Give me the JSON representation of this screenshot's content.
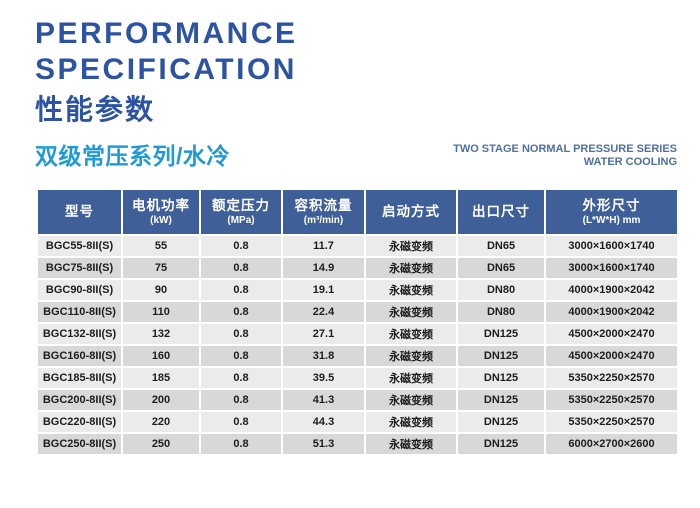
{
  "page": {
    "title_en_line1": "PERFORMANCE",
    "title_en_line2": "SPECIFICATION",
    "title_zh": "性能参数",
    "series_title_zh": "双级常压系列/水冷",
    "series_title_en_line1": "TWO STAGE NORMAL PRESSURE SERIES",
    "series_title_en_line2": "WATER COOLING"
  },
  "colors": {
    "title_blue": "#2d54a3",
    "series_blue": "#1f9ad6",
    "subtitle_gray_blue": "#4f6fa0",
    "header_bg": "#3e5f97",
    "row_light": "#ebebeb",
    "row_dark": "#d8d8d8"
  },
  "table": {
    "columns": [
      {
        "label": "型号",
        "sub": ""
      },
      {
        "label": "电机功率",
        "sub": "(kW)"
      },
      {
        "label": "额定压力",
        "sub": "(MPa)"
      },
      {
        "label": "容积流量",
        "sub": "(m³/min)"
      },
      {
        "label": "启动方式",
        "sub": ""
      },
      {
        "label": "出口尺寸",
        "sub": ""
      },
      {
        "label": "外形尺寸",
        "sub": "(L*W*H) mm"
      }
    ],
    "rows": [
      [
        "BGC55-8II(S)",
        "55",
        "0.8",
        "11.7",
        "永磁变频",
        "DN65",
        "3000×1600×1740"
      ],
      [
        "BGC75-8II(S)",
        "75",
        "0.8",
        "14.9",
        "永磁变频",
        "DN65",
        "3000×1600×1740"
      ],
      [
        "BGC90-8II(S)",
        "90",
        "0.8",
        "19.1",
        "永磁变频",
        "DN80",
        "4000×1900×2042"
      ],
      [
        "BGC110-8II(S)",
        "110",
        "0.8",
        "22.4",
        "永磁变频",
        "DN80",
        "4000×1900×2042"
      ],
      [
        "BGC132-8II(S)",
        "132",
        "0.8",
        "27.1",
        "永磁变频",
        "DN125",
        "4500×2000×2470"
      ],
      [
        "BGC160-8II(S)",
        "160",
        "0.8",
        "31.8",
        "永磁变频",
        "DN125",
        "4500×2000×2470"
      ],
      [
        "BGC185-8II(S)",
        "185",
        "0.8",
        "39.5",
        "永磁变频",
        "DN125",
        "5350×2250×2570"
      ],
      [
        "BGC200-8II(S)",
        "200",
        "0.8",
        "41.3",
        "永磁变频",
        "DN125",
        "5350×2250×2570"
      ],
      [
        "BGC220-8II(S)",
        "220",
        "0.8",
        "44.3",
        "永磁变频",
        "DN125",
        "5350×2250×2570"
      ],
      [
        "BGC250-8II(S)",
        "250",
        "0.8",
        "51.3",
        "永磁变频",
        "DN125",
        "6000×2700×2600"
      ]
    ]
  }
}
